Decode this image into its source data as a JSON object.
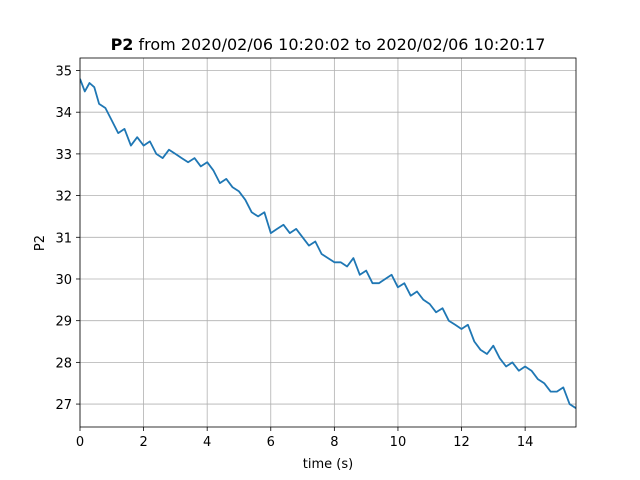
{
  "chart_data": {
    "type": "line",
    "title_bold": "P2",
    "title_rest": " from 2020/02/06 10:20:02 to 2020/02/06 10:20:17",
    "xlabel": "time (s)",
    "ylabel": "P2",
    "xlim": [
      0,
      15.6
    ],
    "ylim": [
      26.45,
      35.3
    ],
    "grid": true,
    "xticks": [
      0,
      2,
      4,
      6,
      8,
      10,
      12,
      14
    ],
    "yticks": [
      27,
      28,
      29,
      30,
      31,
      32,
      33,
      34,
      35
    ],
    "line_color": "#1f77b4",
    "series": [
      {
        "x": [
          0,
          0.15,
          0.3,
          0.45,
          0.6,
          0.8,
          1.0,
          1.2,
          1.4,
          1.6,
          1.8,
          2.0,
          2.2,
          2.4,
          2.6,
          2.8,
          3.0,
          3.2,
          3.4,
          3.6,
          3.8,
          4.0,
          4.2,
          4.4,
          4.6,
          4.8,
          5.0,
          5.2,
          5.4,
          5.6,
          5.8,
          6.0,
          6.2,
          6.4,
          6.6,
          6.8,
          7.0,
          7.2,
          7.4,
          7.6,
          7.8,
          8.0,
          8.2,
          8.4,
          8.6,
          8.8,
          9.0,
          9.2,
          9.4,
          9.6,
          9.8,
          10.0,
          10.2,
          10.4,
          10.6,
          10.8,
          11.0,
          11.2,
          11.4,
          11.6,
          11.8,
          12.0,
          12.2,
          12.4,
          12.6,
          12.8,
          13.0,
          13.2,
          13.4,
          13.6,
          13.8,
          14.0,
          14.2,
          14.4,
          14.6,
          14.8,
          15.0,
          15.2,
          15.4,
          15.6
        ],
        "y": [
          34.8,
          34.5,
          34.7,
          34.6,
          34.2,
          34.1,
          33.8,
          33.5,
          33.6,
          33.2,
          33.4,
          33.2,
          33.3,
          33.0,
          32.9,
          33.1,
          33.0,
          32.9,
          32.8,
          32.9,
          32.7,
          32.8,
          32.6,
          32.3,
          32.4,
          32.2,
          32.1,
          31.9,
          31.6,
          31.5,
          31.6,
          31.1,
          31.2,
          31.3,
          31.1,
          31.2,
          31.0,
          30.8,
          30.9,
          30.6,
          30.5,
          30.4,
          30.4,
          30.3,
          30.5,
          30.1,
          30.2,
          29.9,
          29.9,
          30.0,
          30.1,
          29.8,
          29.9,
          29.6,
          29.7,
          29.5,
          29.4,
          29.2,
          29.3,
          29.0,
          28.9,
          28.8,
          28.9,
          28.5,
          28.3,
          28.2,
          28.4,
          28.1,
          27.9,
          28.0,
          27.8,
          27.9,
          27.8,
          27.6,
          27.5,
          27.3,
          27.3,
          27.4,
          27.0,
          26.9
        ]
      }
    ]
  }
}
